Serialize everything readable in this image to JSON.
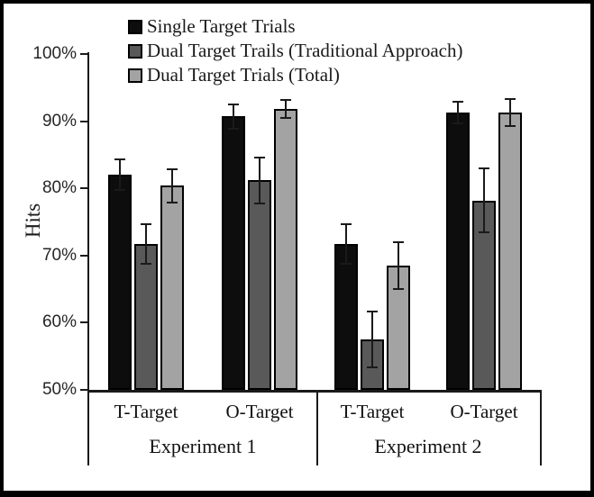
{
  "chart_data": {
    "type": "bar",
    "title": "",
    "ylabel": "Hits",
    "xlabel": "",
    "ylim": [
      50,
      100
    ],
    "yticks": [
      100,
      90,
      80,
      70,
      60,
      50
    ],
    "ytick_labels": [
      "100%",
      "90%",
      "80%",
      "70%",
      "60%",
      "50%"
    ],
    "grid": "off",
    "legend_position": "top-left-inside",
    "error_bars": true,
    "panels": [
      {
        "label": "Experiment 1",
        "categories": [
          "T-Target",
          "O-Target"
        ]
      },
      {
        "label": "Experiment 2",
        "categories": [
          "T-Target",
          "O-Target"
        ]
      }
    ],
    "series": [
      {
        "name": "Single Target Trials",
        "color": "#0d0d0d",
        "values": [
          82.0,
          90.7,
          71.7,
          91.3
        ],
        "errors": [
          2.3,
          1.8,
          3.0,
          1.6
        ]
      },
      {
        "name": "Dual Target Trails (Traditional Approach)",
        "color": "#595959",
        "values": [
          71.7,
          81.2,
          57.5,
          78.2
        ],
        "errors": [
          2.9,
          3.4,
          4.2,
          4.8
        ]
      },
      {
        "name": "Dual Target Trials (Total)",
        "color": "#a3a3a3",
        "values": [
          80.4,
          91.8,
          68.5,
          91.3
        ],
        "errors": [
          2.5,
          1.3,
          3.5,
          2.0
        ]
      }
    ]
  }
}
